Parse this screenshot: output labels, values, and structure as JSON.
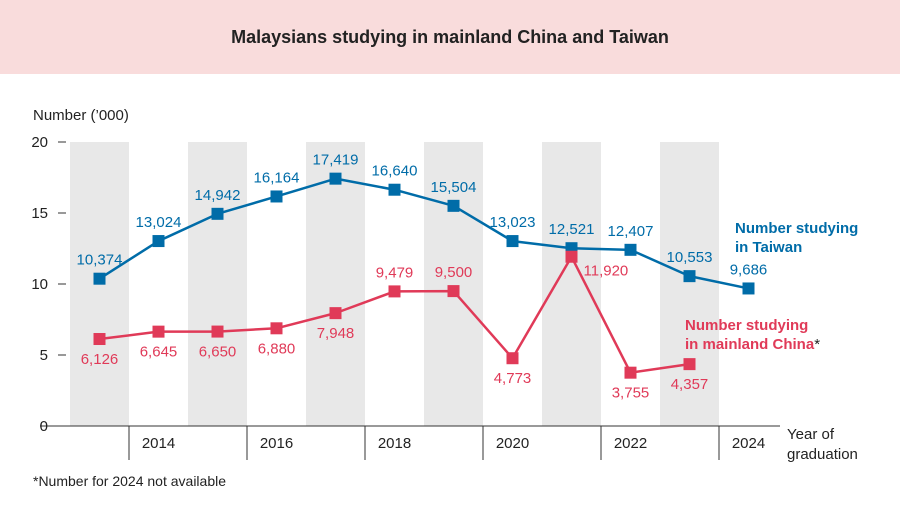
{
  "chart_data": {
    "type": "line",
    "title": "Malaysians studying in mainland China and Taiwan",
    "ylabel": "Number (’000)",
    "xlabel": "Year of graduation",
    "ylim": [
      0,
      20
    ],
    "yticks": [
      0,
      5,
      10,
      15,
      20
    ],
    "x": [
      2013,
      2014,
      2015,
      2016,
      2017,
      2018,
      2019,
      2020,
      2021,
      2022,
      2023,
      2024
    ],
    "xtick_labels": [
      "2014",
      "2016",
      "2018",
      "2020",
      "2022",
      "2024"
    ],
    "grid": false,
    "series": [
      {
        "name": "Number studying in Taiwan",
        "color": "#006ca8",
        "values": [
          10374,
          13024,
          14942,
          16164,
          17419,
          16640,
          15504,
          13023,
          12521,
          12407,
          10553,
          9686
        ],
        "labels": [
          "10,374",
          "13,024",
          "14,942",
          "16,164",
          "17,419",
          "16,640",
          "15,504",
          "13,023",
          "12,521",
          "12,407",
          "10,553",
          "9,686"
        ]
      },
      {
        "name": "Number studying in mainland China",
        "name_suffix": "*",
        "color": "#e03a58",
        "values": [
          6126,
          6645,
          6650,
          6880,
          7948,
          9479,
          9500,
          4773,
          11920,
          3755,
          4357,
          null
        ],
        "labels": [
          "6,126",
          "6,645",
          "6,650",
          "6,880",
          "7,948",
          "9,479",
          "9,500",
          "4,773",
          "11,920",
          "3,755",
          "4,357",
          null
        ]
      }
    ],
    "footnote": "*Number for 2024 not available"
  }
}
